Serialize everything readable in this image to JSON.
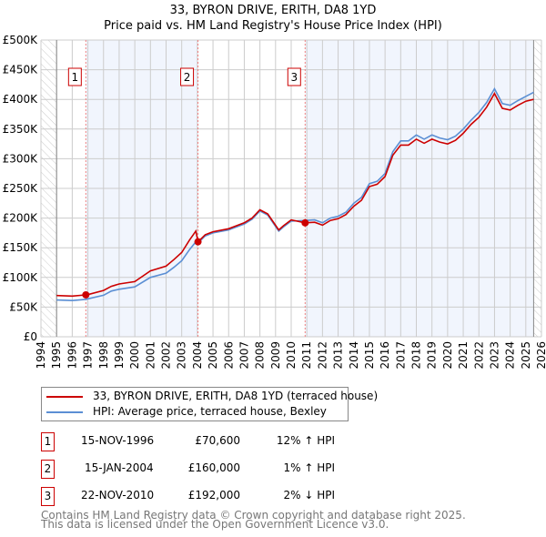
{
  "chart_data": {
    "type": "line",
    "title": "33, BYRON DRIVE, ERITH, DA8 1YD",
    "subtitle": "Price paid vs. HM Land Registry's House Price Index (HPI)",
    "xlim": [
      1994,
      2026
    ],
    "ylim": [
      0,
      500000
    ],
    "y_ticks": [
      {
        "v": 0,
        "label": "£0"
      },
      {
        "v": 50000,
        "label": "£50K"
      },
      {
        "v": 100000,
        "label": "£100K"
      },
      {
        "v": 150000,
        "label": "£150K"
      },
      {
        "v": 200000,
        "label": "£200K"
      },
      {
        "v": 250000,
        "label": "£250K"
      },
      {
        "v": 300000,
        "label": "£300K"
      },
      {
        "v": 350000,
        "label": "£350K"
      },
      {
        "v": 400000,
        "label": "£400K"
      },
      {
        "v": 450000,
        "label": "£450K"
      },
      {
        "v": 500000,
        "label": "£500K"
      }
    ],
    "x_ticks": [
      "1994",
      "1995",
      "1996",
      "1997",
      "1998",
      "1999",
      "2000",
      "2001",
      "2002",
      "2003",
      "2004",
      "2005",
      "2006",
      "2007",
      "2008",
      "2009",
      "2010",
      "2011",
      "2012",
      "2013",
      "2014",
      "2015",
      "2016",
      "2017",
      "2018",
      "2019",
      "2020",
      "2021",
      "2022",
      "2023",
      "2024",
      "2025",
      "2026"
    ],
    "grid": true,
    "data_range": [
      1995,
      2025.5
    ],
    "shaded_periods": [
      [
        1996.87,
        2004.04
      ],
      [
        2010.89,
        2025.5
      ]
    ],
    "series": [
      {
        "name": "33, BYRON DRIVE, ERITH, DA8 1YD (terraced house)",
        "color": "#cc0000",
        "x": [
          1995,
          1996,
          1996.87,
          1997,
          1998,
          1998.5,
          1999,
          2000,
          2001,
          2002,
          2002.5,
          2003,
          2003.5,
          2003.9,
          2004.04,
          2004.5,
          2005,
          2006,
          2007,
          2007.5,
          2008,
          2008.5,
          2009.2,
          2009.5,
          2010,
          2010.89,
          2011.5,
          2012,
          2012.5,
          2013,
          2013.5,
          2014,
          2014.5,
          2015,
          2015.5,
          2016,
          2016.5,
          2017,
          2017.5,
          2018,
          2018.5,
          2019,
          2019.5,
          2020,
          2020.5,
          2021,
          2021.5,
          2022,
          2022.5,
          2023,
          2023.5,
          2024,
          2024.5,
          2025,
          2025.5
        ],
        "y": [
          69500,
          68500,
          70600,
          71000,
          78000,
          85000,
          89000,
          93000,
          111000,
          119000,
          130000,
          142000,
          163000,
          178000,
          160000,
          172000,
          177000,
          182000,
          192000,
          200000,
          214000,
          207000,
          180000,
          187000,
          197000,
          192000,
          193000,
          188000,
          196000,
          199000,
          206000,
          220000,
          230000,
          253000,
          257000,
          270000,
          306000,
          323000,
          323000,
          333000,
          326000,
          333000,
          328000,
          325000,
          331000,
          343000,
          358000,
          370000,
          387000,
          410000,
          385000,
          382000,
          390000,
          397000,
          400000
        ]
      },
      {
        "name": "HPI: Average price, terraced house, Bexley",
        "color": "#5b8fd4",
        "x": [
          1995,
          1996,
          1996.87,
          1997,
          1998,
          1998.5,
          1999,
          2000,
          2001,
          2002,
          2002.5,
          2003,
          2003.5,
          2003.9,
          2004.04,
          2004.5,
          2005,
          2006,
          2007,
          2007.5,
          2008,
          2008.5,
          2009.2,
          2009.5,
          2010,
          2010.89,
          2011.5,
          2012,
          2012.5,
          2013,
          2013.5,
          2014,
          2014.5,
          2015,
          2015.5,
          2016,
          2016.5,
          2017,
          2017.5,
          2018,
          2018.5,
          2019,
          2019.5,
          2020,
          2020.5,
          2021,
          2021.5,
          2022,
          2022.5,
          2023,
          2023.5,
          2024,
          2024.5,
          2025,
          2025.5
        ],
        "y": [
          62000,
          61000,
          63000,
          64000,
          70000,
          77000,
          80000,
          84000,
          100000,
          107000,
          117000,
          128000,
          147000,
          160000,
          158000,
          170000,
          175000,
          180000,
          190000,
          198000,
          212000,
          205000,
          178000,
          185000,
          195000,
          196000,
          197000,
          192000,
          200000,
          203000,
          210000,
          225000,
          235000,
          258000,
          262000,
          275000,
          312000,
          330000,
          330000,
          340000,
          333000,
          340000,
          335000,
          332000,
          338000,
          350000,
          365000,
          378000,
          395000,
          418000,
          393000,
          390000,
          398000,
          405000,
          412000
        ]
      }
    ],
    "sales": [
      {
        "label": "1",
        "x": 1996.87,
        "y": 70600,
        "date": "15-NOV-1996",
        "price": "£70,600",
        "hpi": "12% ↑ HPI"
      },
      {
        "label": "2",
        "x": 2004.04,
        "y": 160000,
        "date": "15-JAN-2004",
        "price": "£160,000",
        "hpi": "1% ↑ HPI"
      },
      {
        "label": "3",
        "x": 2010.89,
        "y": 192000,
        "date": "22-NOV-2010",
        "price": "£192,000",
        "hpi": "2% ↓ HPI"
      }
    ],
    "legend": {
      "placement": "below",
      "items": [
        "33, BYRON DRIVE, ERITH, DA8 1YD (terraced house)",
        "HPI: Average price, terraced house, Bexley"
      ]
    }
  },
  "footer": {
    "line1": "Contains HM Land Registry data © Crown copyright and database right 2025.",
    "line2": "This data is licensed under the Open Government Licence v3.0."
  }
}
